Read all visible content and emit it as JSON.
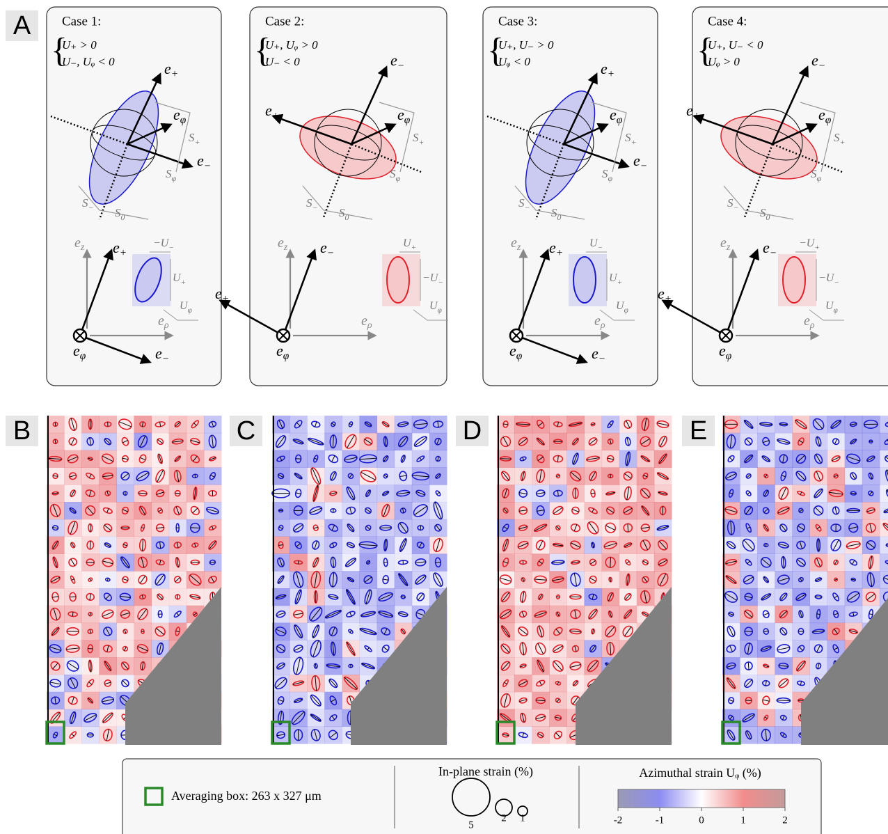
{
  "panel_labels": [
    "A",
    "B",
    "C",
    "D",
    "E"
  ],
  "cases": [
    {
      "title": "Case 1:",
      "conditions": [
        "U₊ > 0",
        "U₋, Uᵩ < 0"
      ],
      "strain_labels": [
        {
          "base": "−U",
          "sub": "−"
        },
        {
          "base": "U",
          "sub": "+"
        },
        {
          "base": "U",
          "sub": "φ"
        }
      ]
    },
    {
      "title": "Case 2:",
      "conditions": [
        "U₊, Uᵩ > 0",
        "U₋ < 0"
      ],
      "strain_labels": [
        {
          "base": "U",
          "sub": "+"
        },
        {
          "base": "−U",
          "sub": "−"
        },
        {
          "base": "U",
          "sub": "φ"
        }
      ]
    },
    {
      "title": "Case 3:",
      "conditions": [
        "U₊, U₋ > 0",
        "Uᵩ < 0"
      ],
      "strain_labels": [
        {
          "base": "U",
          "sub": "−"
        },
        {
          "base": "U",
          "sub": "+"
        },
        {
          "base": "U",
          "sub": "φ"
        }
      ]
    },
    {
      "title": "Case 4:",
      "conditions": [
        "U₊, U₋ < 0",
        "Uᵩ > 0"
      ],
      "strain_labels": [
        {
          "base": "−U",
          "sub": "+"
        },
        {
          "base": "−U",
          "sub": "−"
        },
        {
          "base": "U",
          "sub": "φ"
        }
      ]
    }
  ],
  "symbols": {
    "e_plus": {
      "base": "e",
      "sub": "+"
    },
    "e_minus": {
      "base": "e",
      "sub": "−"
    },
    "e_phi": {
      "base": "e",
      "sub": "φ"
    },
    "e_z": {
      "base": "e",
      "sub": "z"
    },
    "e_rho": {
      "base": "e",
      "sub": "ρ"
    },
    "s_plus": {
      "base": "S",
      "sub": "+"
    },
    "s_minus": {
      "base": "S",
      "sub": "−"
    },
    "s_phi": {
      "base": "S",
      "sub": "φ"
    },
    "s_zero": {
      "base": "S",
      "sub": "0"
    }
  },
  "legend": {
    "box_label": "Averaging box: 263 x 327 μm",
    "inplane_title": "In-plane strain (%)",
    "inplane_sizes": [
      5,
      2,
      1
    ],
    "azimuthal_title": "Azimuthal strain Uᵩ (%)",
    "colorbar_ticks": [
      -2,
      -1,
      0,
      1,
      2
    ]
  }
}
